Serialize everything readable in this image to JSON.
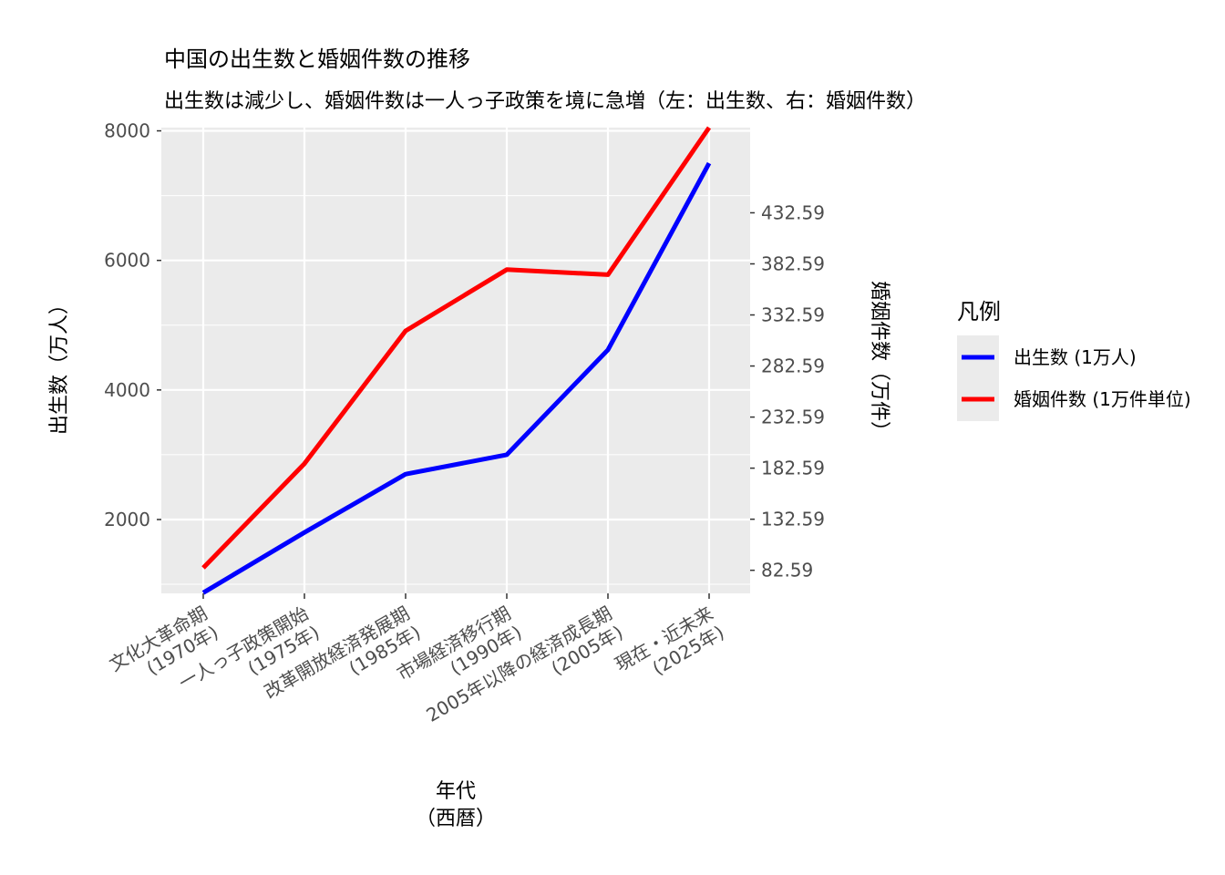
{
  "chart_data": {
    "type": "line",
    "title": "中国の出生数と婚姻件数の推移",
    "subtitle": "出生数は減少し、婚姻件数は一人っ子政策を境に急増（左：出生数、右：婚姻件数）",
    "xlabel": "年代\n（西暦）",
    "ylabel_left": "出生数（万人）",
    "ylabel_right": "婚姻件数（万件）",
    "categories": [
      [
        "文化大革命期",
        "(1970年)"
      ],
      [
        "一人っ子政策開始",
        "(1975年)"
      ],
      [
        "改革開放経済発展期",
        "(1985年)"
      ],
      [
        "市場経済移行期",
        "(1990年)"
      ],
      [
        "2005年以降の経済成長期",
        "(2005年)"
      ],
      [
        "現在・近未来",
        "(2025年)"
      ]
    ],
    "y_left": {
      "ylim": [
        860,
        8050
      ],
      "ticks": [
        2000,
        4000,
        6000,
        8000
      ]
    },
    "y_right": {
      "ylim": [
        60.0,
        516.0
      ],
      "ticks": [
        82.59,
        132.59,
        182.59,
        232.59,
        282.59,
        332.59,
        382.59,
        432.59
      ]
    },
    "series": [
      {
        "name": "出生数 (1万人)",
        "axis": "left",
        "color": "#0000ff",
        "values": [
          870,
          1800,
          2700,
          3000,
          4620,
          7500
        ]
      },
      {
        "name": "婚姻件数 (1万件単位)",
        "axis": "right",
        "color": "#ff0000",
        "values": [
          85,
          187,
          317,
          377,
          372,
          516
        ]
      }
    ],
    "legend": {
      "title": "凡例",
      "position": "right"
    },
    "grid": true
  }
}
